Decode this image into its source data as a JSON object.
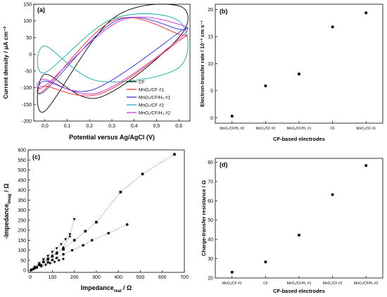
{
  "chart_data": [
    {
      "id": "a",
      "type": "line",
      "panel_label": "(a)",
      "xlabel_parts": [
        "Potential ",
        "versus",
        " Ag/AgCl (V)"
      ],
      "ylabel": "Current density / μA cm⁻²",
      "xlim": [
        -0.05,
        0.65
      ],
      "ylim": [
        -200,
        150
      ],
      "xticks": [
        "0,0",
        "0,1",
        "0,2",
        "0,3",
        "0,4",
        "0,5",
        "0,6"
      ],
      "yticks": [
        "-200",
        "-150",
        "-100",
        "-50",
        "0",
        "50",
        "100",
        "150"
      ],
      "legend_position": "lower-right",
      "series": [
        {
          "name": "CF",
          "color": "#000000",
          "ox": [
            0.0,
            0.3,
            0.6
          ],
          "oy": [
            -170,
            105,
            145
          ],
          "rx": [
            0.6,
            0.24,
            0.0
          ],
          "ry": [
            50,
            -130,
            -60
          ]
        },
        {
          "name": "MnO₂/CF #1",
          "color": "#e8262d",
          "ox": [
            0.0,
            0.31,
            0.6
          ],
          "oy": [
            -105,
            103,
            60
          ],
          "rx": [
            0.6,
            0.25,
            0.0
          ],
          "ry": [
            40,
            -118,
            -95
          ]
        },
        {
          "name": "MnO₂/CF/H₂ #1",
          "color": "#2b2bd6",
          "ox": [
            0.0,
            0.32,
            0.6
          ],
          "oy": [
            -110,
            101,
            75
          ],
          "rx": [
            0.6,
            0.22,
            0.0
          ],
          "ry": [
            65,
            -105,
            -80
          ]
        },
        {
          "name": "MnO₂/CF #2",
          "color": "#17a6a6",
          "ox": [
            0.0,
            0.3,
            0.6
          ],
          "oy": [
            -55,
            105,
            100
          ],
          "rx": [
            0.6,
            0.24,
            0.0
          ],
          "ry": [
            -40,
            -80,
            25
          ]
        },
        {
          "name": "MnO₂/CF/H₂ #2",
          "color": "#cc2ccc",
          "ox": [
            0.0,
            0.33,
            0.6
          ],
          "oy": [
            -95,
            98,
            90
          ],
          "rx": [
            0.6,
            0.24,
            0.0
          ],
          "ry": [
            45,
            -115,
            -75
          ]
        }
      ]
    },
    {
      "id": "b",
      "type": "scatter",
      "panel_label": "(b)",
      "xlabel": "CF-based electrodes",
      "ylabel": "Electron-transfer rate / 10⁻³ cm s⁻¹",
      "ylim": [
        -1,
        21
      ],
      "yticks": [
        "0",
        "5",
        "10",
        "15",
        "20"
      ],
      "categories": [
        "MnO₂/CF/H₂ #2",
        "MnO₂/CF #2",
        "MnO₂/CF/H₂ #1",
        "CF",
        "MnO₂/CF #1"
      ],
      "values": [
        0.3,
        5.9,
        8.1,
        16.8,
        19.4
      ]
    },
    {
      "id": "c",
      "type": "scatter",
      "panel_label": "(c)",
      "xlabel": "Impedance(real) / Ω",
      "ylabel": "-Impedance(imag) / Ω",
      "xlim": [
        -10,
        700
      ],
      "ylim": [
        -10,
        600
      ],
      "xticks": [
        "0",
        "100",
        "200",
        "300",
        "400",
        "500",
        "600",
        "700"
      ],
      "yticks": [
        "0",
        "50",
        "100",
        "150",
        "200",
        "250",
        "300",
        "350",
        "400",
        "450",
        "500",
        "550",
        "600"
      ],
      "series": [
        {
          "marker": "square",
          "x": [
            5,
            20,
            40,
            60,
            80,
            100,
            120,
            150,
            200,
            250,
            300,
            410,
            510,
            655
          ],
          "y": [
            3,
            12,
            28,
            42,
            55,
            70,
            85,
            105,
            150,
            195,
            240,
            390,
            480,
            578
          ]
        },
        {
          "marker": "circle",
          "x": [
            5,
            15,
            30,
            50,
            80,
            100,
            120,
            150,
            190,
            240,
            280,
            355,
            440
          ],
          "y": [
            2,
            8,
            15,
            25,
            40,
            52,
            62,
            80,
            100,
            125,
            150,
            185,
            228
          ]
        },
        {
          "marker": "triangle-up",
          "x": [
            5,
            20,
            40,
            60,
            80,
            100,
            120,
            150,
            180
          ],
          "y": [
            3,
            15,
            30,
            45,
            60,
            75,
            90,
            115,
            170
          ]
        },
        {
          "marker": "triangle-down",
          "x": [
            5,
            20,
            40,
            60,
            80,
            100,
            120,
            140,
            160,
            180,
            200
          ],
          "y": [
            4,
            18,
            36,
            55,
            72,
            92,
            110,
            130,
            155,
            180,
            255
          ]
        },
        {
          "marker": "diamond",
          "x": [
            5,
            15,
            30,
            50,
            70,
            90,
            110,
            130,
            150
          ],
          "y": [
            2,
            7,
            14,
            20,
            28,
            36,
            42,
            50,
            57
          ]
        }
      ]
    },
    {
      "id": "d",
      "type": "scatter",
      "panel_label": "(d)",
      "xlabel": "CF-based electrodes",
      "ylabel": "Charge-transfer resistance / Ω",
      "ylim": [
        20,
        82
      ],
      "yticks": [
        "20",
        "30",
        "40",
        "50",
        "60",
        "70",
        "80"
      ],
      "categories": [
        "MnO₂/CF #1",
        "CF",
        "MnO₂/CF/H₂ #1",
        "MnO₂/CF #2",
        "MnO₂/CF/H₂ #2"
      ],
      "values": [
        23,
        28.3,
        42.2,
        63.2,
        78.3
      ]
    }
  ]
}
